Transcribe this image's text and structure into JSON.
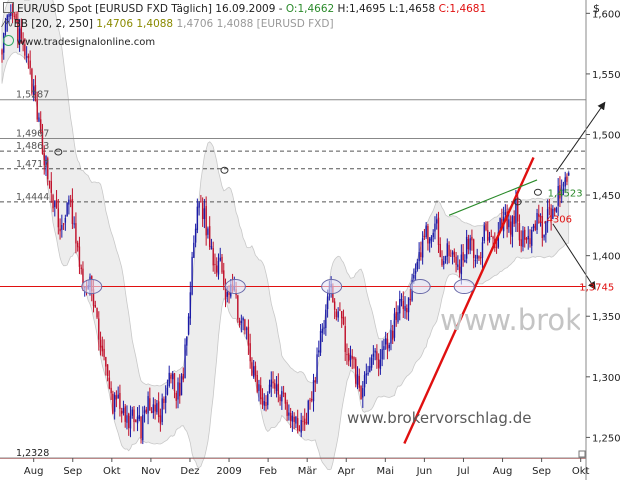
{
  "header": {
    "line1": {
      "instrument": "EUR/USD Spot [EURUSD FXD  Täglich] 16.09.2009 - ",
      "open": "O:1,4662",
      "high": "H:1,4695",
      "low": "L:1,4658",
      "close": "C:1,4681"
    },
    "line2": {
      "indicator": "BB [20, 2, 250] ",
      "upper": "1,4706",
      "middle": "1,4088",
      "lower": "1,4706",
      "source": "1,4088 [EURUSD FXD]"
    },
    "website": "www.tradesignalonline.com"
  },
  "watermarks": {
    "brand": "www.broke",
    "url": "www.brokervorschlag.de"
  },
  "currency_symbol": "$",
  "colors": {
    "up_candle": "#1a1aa6",
    "down_candle": "#c0102a",
    "band_fill": "#ededed",
    "band_line": "#c8c8c8",
    "support_line": "#e01010",
    "trend_line": "#e01010",
    "channel_line": "#2a8a2a",
    "dashed_level": "#555555",
    "arrow": "#222222",
    "circle_fill": "#e6e6f7",
    "open_color": "#2a8a2a",
    "close_color": "#e01010",
    "upper_color": "#8a8a00"
  },
  "chart_data": {
    "type": "candlestick",
    "title": "EUR/USD Spot [EURUSD FXD Täglich] 16.09.2009",
    "xlabel": "",
    "ylabel": "$",
    "ylim": [
      1.233,
      1.611
    ],
    "y_ticks": [
      "1,600",
      "1,550",
      "1,500",
      "1,450",
      "1,400",
      "1,350",
      "1,300",
      "1,250"
    ],
    "x_ticks": [
      "Aug",
      "Sep",
      "Okt",
      "Nov",
      "Dez",
      "2009",
      "Feb",
      "Mär",
      "Apr",
      "Mai",
      "Jun",
      "Jul",
      "Aug",
      "Sep",
      "Okt"
    ],
    "grid": false,
    "legend": "none",
    "ohlc_last": {
      "date": "16.09.2009",
      "open": 1.4662,
      "high": 1.4695,
      "low": 1.4658,
      "close": 1.4681
    },
    "bollinger": {
      "period": 20,
      "stddev": 2,
      "lookback": 250
    },
    "horizontal_levels": [
      {
        "label": "1,5287",
        "value": 1.5287,
        "style": "solid-gray"
      },
      {
        "label": "1,4967",
        "value": 1.4967,
        "style": "solid-gray"
      },
      {
        "label": "1,4863",
        "value": 1.4863,
        "style": "dashed"
      },
      {
        "label": "1,4717",
        "value": 1.4717,
        "style": "dashed"
      },
      {
        "label": "1,4444",
        "value": 1.4444,
        "style": "dashed"
      },
      {
        "label": "1,2328",
        "value": 1.2328,
        "style": "solid-red"
      },
      {
        "label": "",
        "value": 1.3745,
        "style": "solid-red"
      }
    ],
    "annotations": [
      {
        "label": "1,4523",
        "value": 1.4523,
        "color": "#2a8a2a"
      },
      {
        "label": "1,4306",
        "value": 1.4306,
        "color": "#e01010"
      },
      {
        "label": "1,3745",
        "value": 1.3745,
        "color": "#e01010"
      }
    ],
    "trendlines": [
      {
        "name": "support-trend",
        "color": "#e01010",
        "from": [
          228.6,
          1.245
        ],
        "to": [
          302,
          1.481
        ]
      },
      {
        "name": "channel-top",
        "color": "#2a8a2a",
        "from": [
          254,
          1.4333
        ],
        "to": [
          304,
          1.4625
        ]
      }
    ],
    "marked_points": [
      {
        "x": 32,
        "value": 1.4855,
        "kind": "top"
      },
      {
        "x": 126.4,
        "value": 1.4705,
        "kind": "top"
      },
      {
        "x": 51,
        "value": 1.3745,
        "kind": "support-ellipse"
      },
      {
        "x": 132.6,
        "value": 1.3745,
        "kind": "support-ellipse"
      },
      {
        "x": 187.3,
        "value": 1.3745,
        "kind": "support-ellipse"
      },
      {
        "x": 237.6,
        "value": 1.3745,
        "kind": "support-ellipse"
      },
      {
        "x": 262.6,
        "value": 1.3745,
        "kind": "support-ellipse"
      },
      {
        "x": 293,
        "value": 1.4444,
        "kind": "top"
      },
      {
        "x": 304.5,
        "value": 1.4523,
        "kind": "top"
      }
    ],
    "target_zone": {
      "x": 354,
      "value": 1.546
    },
    "arrows": [
      {
        "from": [
          315,
          1.4693
        ],
        "to": [
          342.5,
          1.5265
        ]
      },
      {
        "from": [
          313,
          1.4262
        ],
        "to": [
          337,
          1.3725
        ]
      }
    ],
    "daily_anchor_closes": [
      [
        0,
        1.575
      ],
      [
        3,
        1.59
      ],
      [
        6,
        1.596
      ],
      [
        9,
        1.583
      ],
      [
        13,
        1.566
      ],
      [
        16,
        1.551
      ],
      [
        19,
        1.521
      ],
      [
        22,
        1.499
      ],
      [
        25,
        1.476
      ],
      [
        29,
        1.446
      ],
      [
        33,
        1.418
      ],
      [
        36,
        1.436
      ],
      [
        39,
        1.441
      ],
      [
        42,
        1.412
      ],
      [
        45,
        1.381
      ],
      [
        48,
        1.371
      ],
      [
        51,
        1.376
      ],
      [
        54,
        1.346
      ],
      [
        57,
        1.318
      ],
      [
        60,
        1.296
      ],
      [
        63,
        1.276
      ],
      [
        66,
        1.286
      ],
      [
        69,
        1.266
      ],
      [
        72,
        1.256
      ],
      [
        75,
        1.271
      ],
      [
        79,
        1.258
      ],
      [
        82,
        1.276
      ],
      [
        86,
        1.276
      ],
      [
        89,
        1.266
      ],
      [
        93,
        1.281
      ],
      [
        96,
        1.301
      ],
      [
        99,
        1.282
      ],
      [
        103,
        1.301
      ],
      [
        106,
        1.351
      ],
      [
        109,
        1.411
      ],
      [
        112,
        1.449
      ],
      [
        115,
        1.431
      ],
      [
        118,
        1.411
      ],
      [
        121,
        1.391
      ],
      [
        124,
        1.401
      ],
      [
        127,
        1.371
      ],
      [
        130,
        1.376
      ],
      [
        133,
        1.361
      ],
      [
        136,
        1.346
      ],
      [
        139,
        1.331
      ],
      [
        142,
        1.306
      ],
      [
        145,
        1.291
      ],
      [
        148,
        1.281
      ],
      [
        151,
        1.286
      ],
      [
        154,
        1.301
      ],
      [
        157,
        1.286
      ],
      [
        160,
        1.291
      ],
      [
        163,
        1.268
      ],
      [
        166,
        1.262
      ],
      [
        169,
        1.258
      ],
      [
        172,
        1.266
      ],
      [
        175,
        1.276
      ],
      [
        178,
        1.301
      ],
      [
        181,
        1.331
      ],
      [
        184,
        1.356
      ],
      [
        187,
        1.371
      ],
      [
        190,
        1.356
      ],
      [
        193,
        1.346
      ],
      [
        196,
        1.321
      ],
      [
        199,
        1.311
      ],
      [
        202,
        1.296
      ],
      [
        205,
        1.286
      ],
      [
        208,
        1.306
      ],
      [
        211,
        1.321
      ],
      [
        214,
        1.311
      ],
      [
        217,
        1.331
      ],
      [
        220,
        1.326
      ],
      [
        223,
        1.346
      ],
      [
        226,
        1.361
      ],
      [
        229,
        1.351
      ],
      [
        232,
        1.371
      ],
      [
        235,
        1.381
      ],
      [
        238,
        1.406
      ],
      [
        241,
        1.421
      ],
      [
        244,
        1.411
      ],
      [
        247,
        1.421
      ],
      [
        250,
        1.401
      ],
      [
        253,
        1.411
      ],
      [
        256,
        1.396
      ],
      [
        259,
        1.386
      ],
      [
        262,
        1.401
      ],
      [
        265,
        1.411
      ],
      [
        268,
        1.406
      ],
      [
        271,
        1.401
      ],
      [
        274,
        1.416
      ],
      [
        277,
        1.421
      ],
      [
        280,
        1.406
      ],
      [
        283,
        1.426
      ],
      [
        286,
        1.431
      ],
      [
        289,
        1.421
      ],
      [
        292,
        1.441
      ],
      [
        295,
        1.411
      ],
      [
        298,
        1.421
      ],
      [
        301,
        1.416
      ],
      [
        304,
        1.431
      ],
      [
        307,
        1.421
      ],
      [
        310,
        1.431
      ],
      [
        313,
        1.436
      ],
      [
        316,
        1.451
      ],
      [
        319,
        1.461
      ],
      [
        322,
        1.468
      ]
    ]
  }
}
